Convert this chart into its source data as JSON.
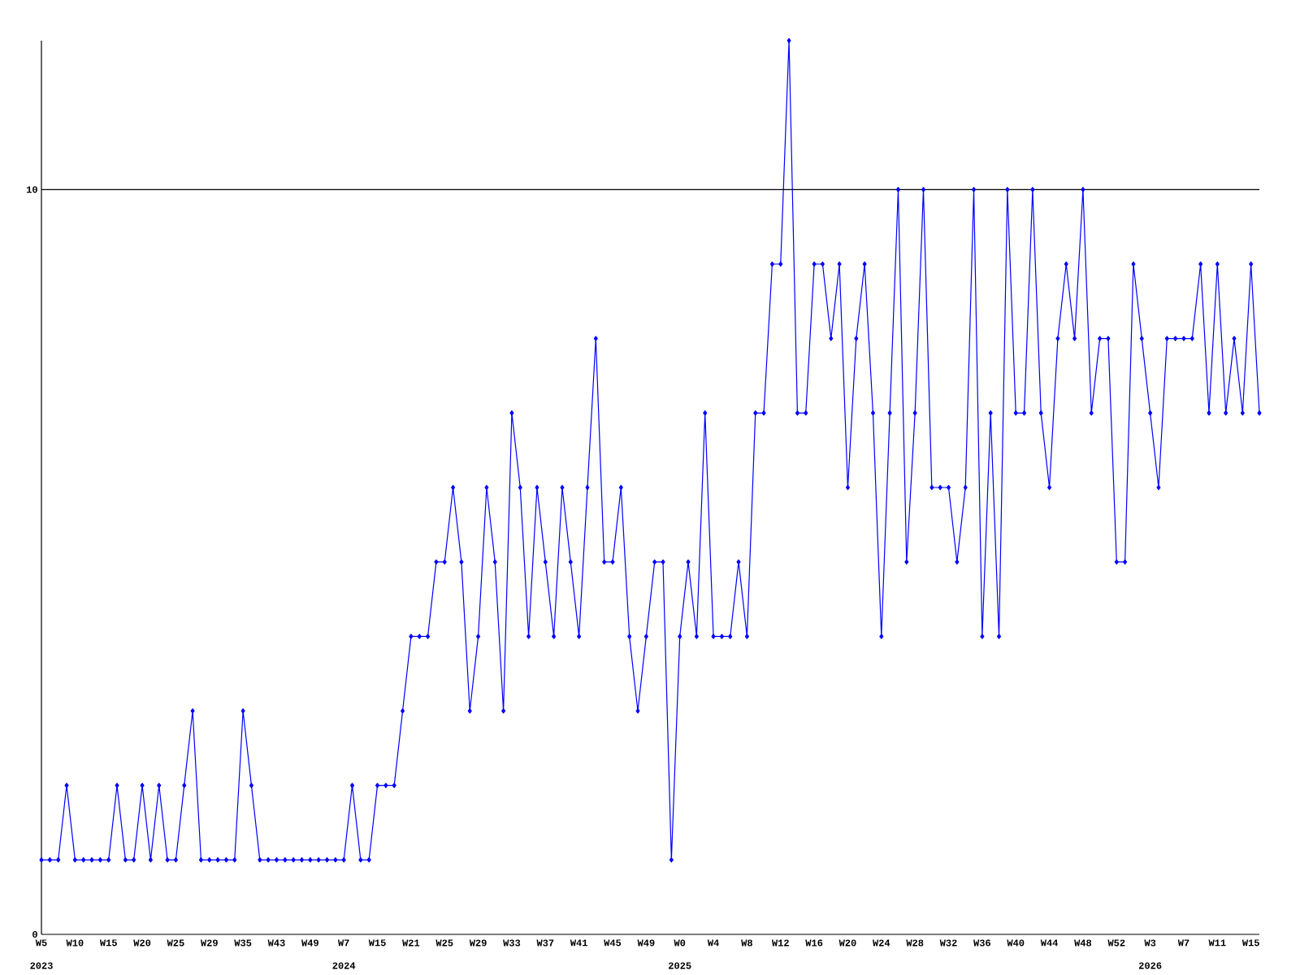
{
  "chart_data": {
    "type": "line",
    "categories": [
      "W5",
      null,
      null,
      null,
      "W10",
      null,
      null,
      null,
      "W15",
      null,
      null,
      null,
      "W20",
      null,
      null,
      null,
      "W25",
      null,
      null,
      null,
      "W29",
      null,
      null,
      null,
      "W35",
      null,
      null,
      null,
      "W43",
      null,
      null,
      null,
      "W49",
      null,
      null,
      null,
      "W7",
      null,
      null,
      null,
      "W15",
      null,
      null,
      null,
      "W21",
      null,
      null,
      null,
      "W25",
      null,
      null,
      null,
      "W29",
      null,
      null,
      null,
      "W33",
      null,
      null,
      null,
      "W37",
      null,
      null,
      null,
      "W41",
      null,
      null,
      null,
      "W45",
      null,
      null,
      null,
      "W49",
      null,
      null,
      null,
      "W0",
      null,
      null,
      null,
      "W4",
      null,
      null,
      null,
      "W8",
      null,
      null,
      null,
      "W12",
      null,
      null,
      null,
      "W16",
      null,
      null,
      null,
      "W20",
      null,
      null,
      null,
      "W24",
      null,
      null,
      null,
      "W28",
      null,
      null,
      null,
      "W32",
      null,
      null,
      null,
      "W36",
      null,
      null,
      null,
      "W40",
      null,
      null,
      null,
      "W44",
      null,
      null,
      null,
      "W48",
      null,
      null,
      null,
      "W52",
      null,
      null,
      null,
      "W3",
      null,
      null,
      null,
      "W7",
      null,
      null,
      null,
      "W11",
      null,
      null,
      null,
      "W15",
      null
    ],
    "series": [
      {
        "color": "#0000ff",
        "values": [
          1,
          1,
          1,
          2,
          1,
          1,
          1,
          1,
          1,
          2,
          1,
          1,
          2,
          1,
          2,
          1,
          1,
          2,
          3,
          1,
          1,
          1,
          1,
          1,
          3,
          2,
          1,
          1,
          1,
          1,
          1,
          1,
          1,
          1,
          1,
          1,
          1,
          2,
          1,
          1,
          2,
          2,
          2,
          3,
          4,
          4,
          4,
          5,
          5,
          6,
          5,
          3,
          4,
          6,
          5,
          3,
          7,
          6,
          4,
          6,
          5,
          4,
          6,
          5,
          4,
          6,
          8,
          5,
          5,
          6,
          4,
          3,
          4,
          5,
          5,
          1,
          4,
          5,
          4,
          7,
          4,
          4,
          4,
          5,
          4,
          7,
          7,
          9,
          9,
          12,
          7,
          7,
          9,
          9,
          8,
          9,
          6,
          8,
          9,
          7,
          4,
          7,
          10,
          5,
          7,
          10,
          6,
          6,
          6,
          5,
          6,
          10,
          4,
          7,
          4,
          10,
          7,
          7,
          10,
          7,
          6,
          8,
          9,
          8,
          10,
          7,
          8,
          8,
          5,
          5,
          9,
          8,
          7,
          6,
          8,
          8,
          8,
          8,
          9,
          7,
          9,
          7,
          8,
          7,
          9,
          7
        ]
      }
    ],
    "ylim": [
      0,
      12
    ],
    "yticks": [
      0,
      10
    ],
    "ref_lines": [
      {
        "axis": "y",
        "value": 10,
        "color": "#000000"
      }
    ],
    "annotations": [
      "2023",
      "2024",
      "2025",
      "2026"
    ],
    "marker": "diamond",
    "line_style": "solid"
  }
}
